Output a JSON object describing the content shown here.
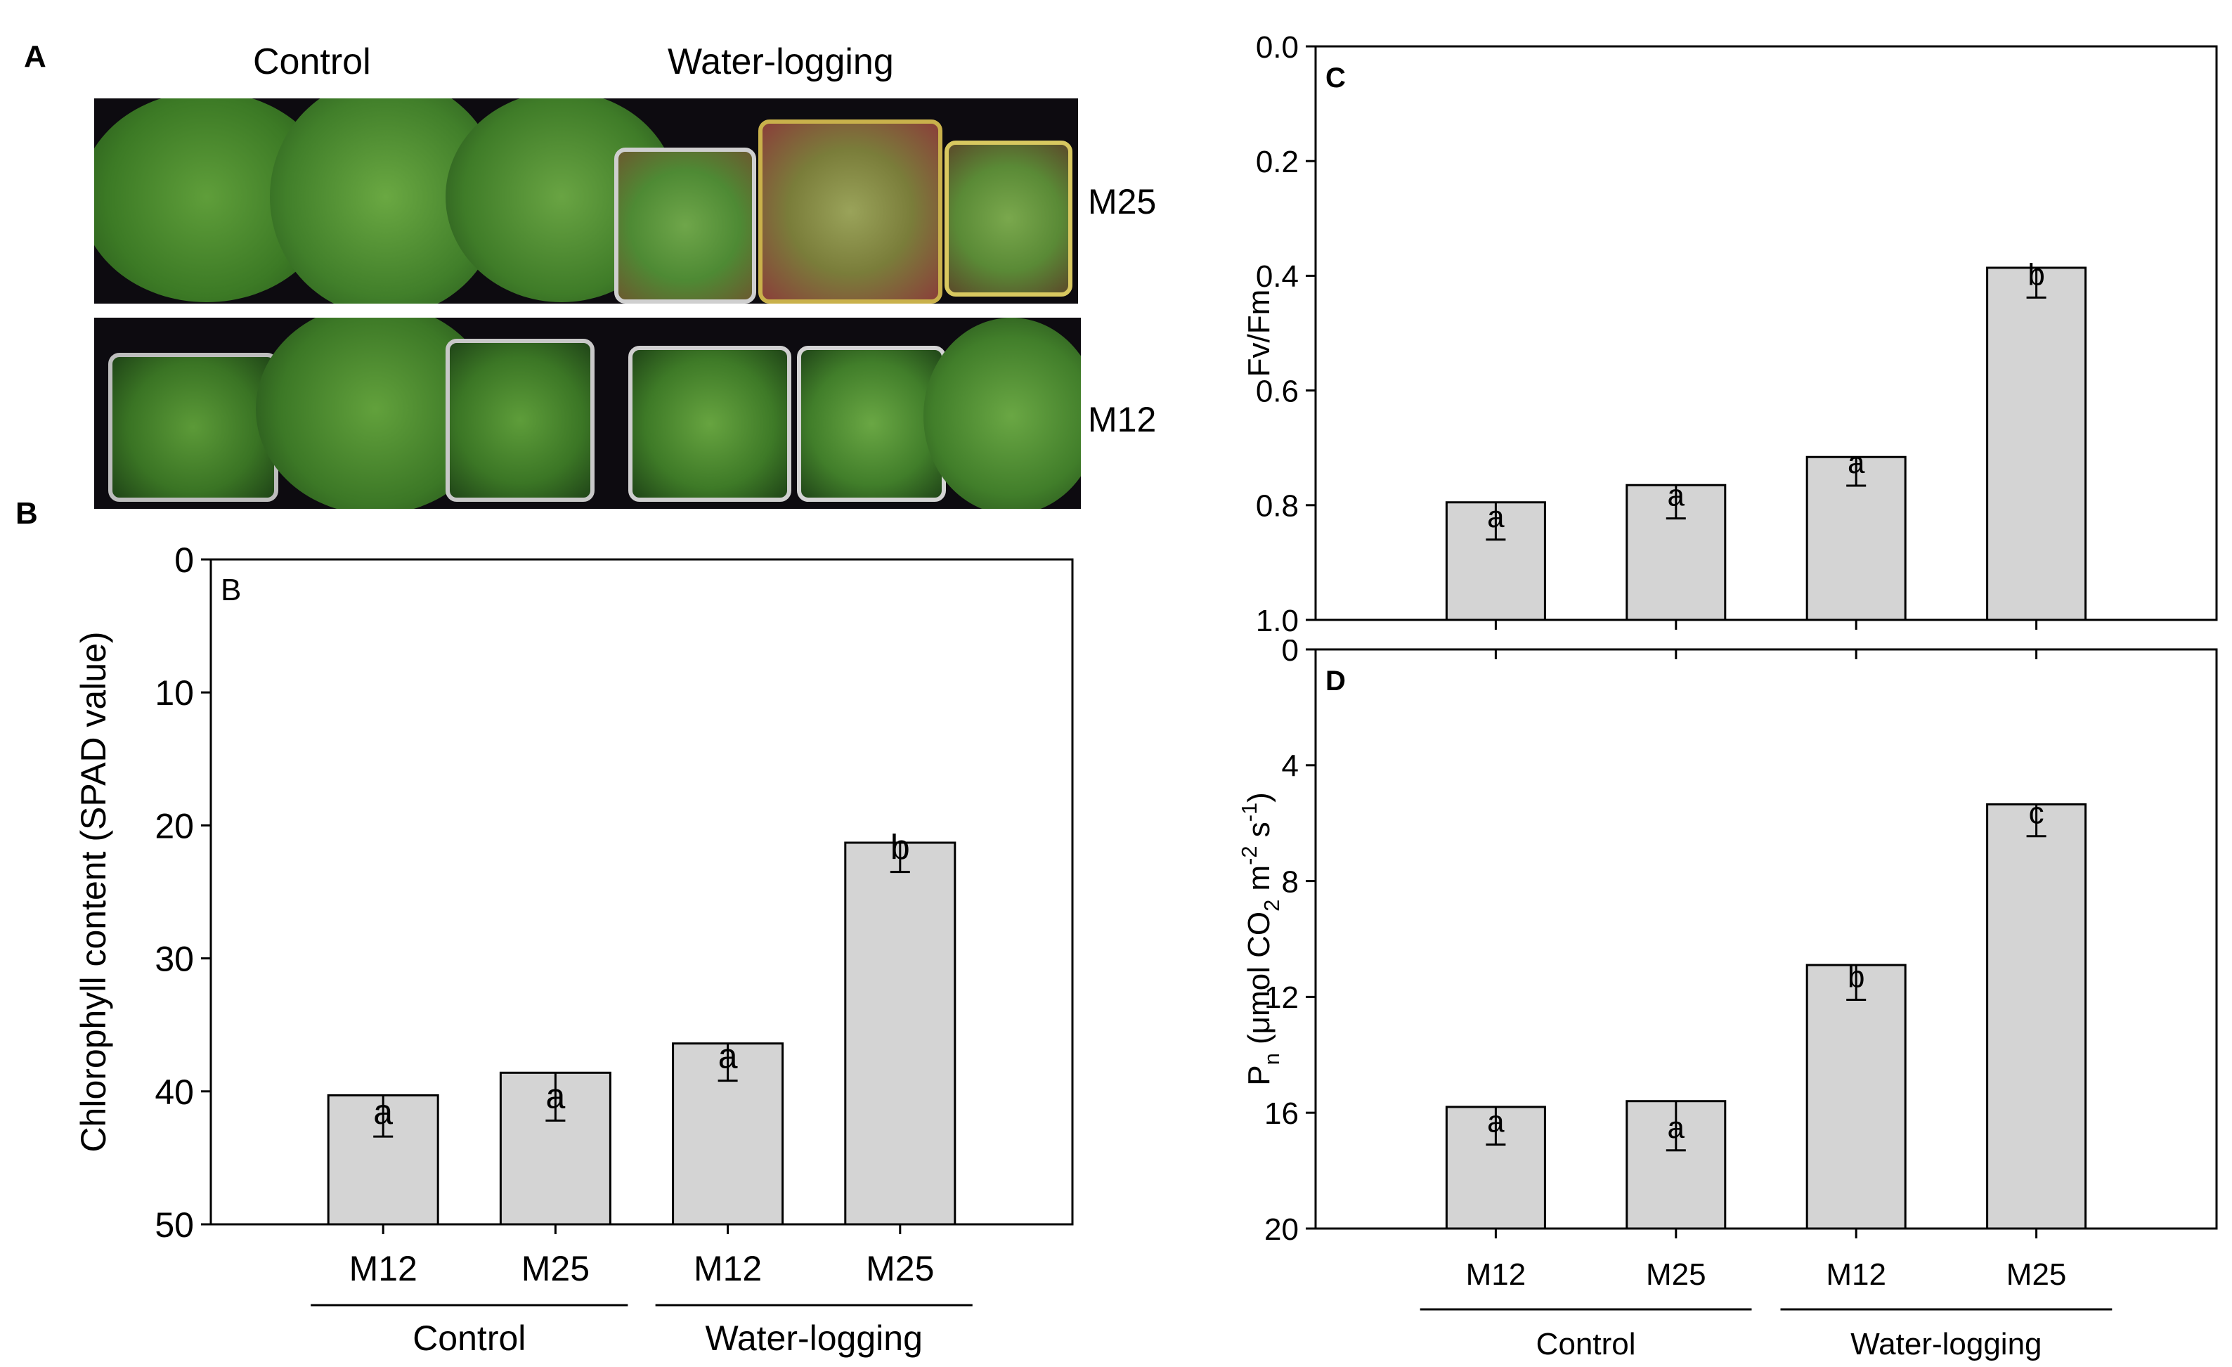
{
  "panels": {
    "a_letter": "A",
    "b_letter": "B",
    "photo": {
      "top_left_label": "Control",
      "top_right_label": "Water-logging",
      "row1_label": "M25",
      "row2_label": "M12"
    }
  },
  "colors": {
    "bar_fill": "#d4d4d4",
    "bar_stroke": "#000000",
    "background": "#ffffff"
  },
  "chart_data": [
    {
      "id": "B",
      "type": "bar",
      "panel_letter": "B",
      "ylabel": "Chlorophyll content (SPAD value)",
      "ylim": [
        0,
        50
      ],
      "yticks": [
        0,
        10,
        20,
        30,
        40,
        50
      ],
      "categories": [
        "M12",
        "M25",
        "M12",
        "M25"
      ],
      "values": [
        40.3,
        38.6,
        36.4,
        21.3
      ],
      "errors": [
        3.1,
        3.6,
        2.8,
        2.2
      ],
      "significance": [
        "a",
        "a",
        "a",
        "b"
      ],
      "groups": [
        {
          "label": "Control",
          "categories": [
            0,
            1
          ]
        },
        {
          "label": "Water-logging",
          "categories": [
            2,
            3
          ]
        }
      ]
    },
    {
      "id": "C",
      "type": "bar",
      "panel_letter": "C",
      "ylabel": "Fv/Fm",
      "ylim": [
        0,
        1.0
      ],
      "yticks": [
        "0.0",
        "0.2",
        "0.4",
        "0.6",
        "0.8",
        "1.0"
      ],
      "categories": [
        "M12",
        "M25",
        "M12",
        "M25"
      ],
      "values": [
        0.795,
        0.765,
        0.716,
        0.386
      ],
      "errors": [
        0.065,
        0.058,
        0.05,
        0.052
      ],
      "significance": [
        "a",
        "a",
        "a",
        "b"
      ]
    },
    {
      "id": "D",
      "type": "bar",
      "panel_letter": "D",
      "ylabel": "Pn (μmol CO2 m-2 s-1)",
      "ylabel_parts": {
        "p": "P",
        "p_sub": "n",
        "a": " (μmol CO",
        "a_sub": "2",
        "b": " m",
        "b_sup": "-2",
        "c": " s",
        "c_sup": "-1",
        "d": ")"
      },
      "ylim": [
        0,
        20
      ],
      "yticks": [
        0,
        4,
        8,
        12,
        16,
        20
      ],
      "categories": [
        "M12",
        "M25",
        "M12",
        "M25"
      ],
      "values": [
        15.8,
        15.6,
        10.9,
        5.35
      ],
      "errors": [
        1.3,
        1.7,
        1.2,
        1.1
      ],
      "significance": [
        "a",
        "a",
        "b",
        "c"
      ],
      "groups": [
        {
          "label": "Control",
          "categories": [
            0,
            1
          ]
        },
        {
          "label": "Water-logging",
          "categories": [
            2,
            3
          ]
        }
      ]
    }
  ]
}
